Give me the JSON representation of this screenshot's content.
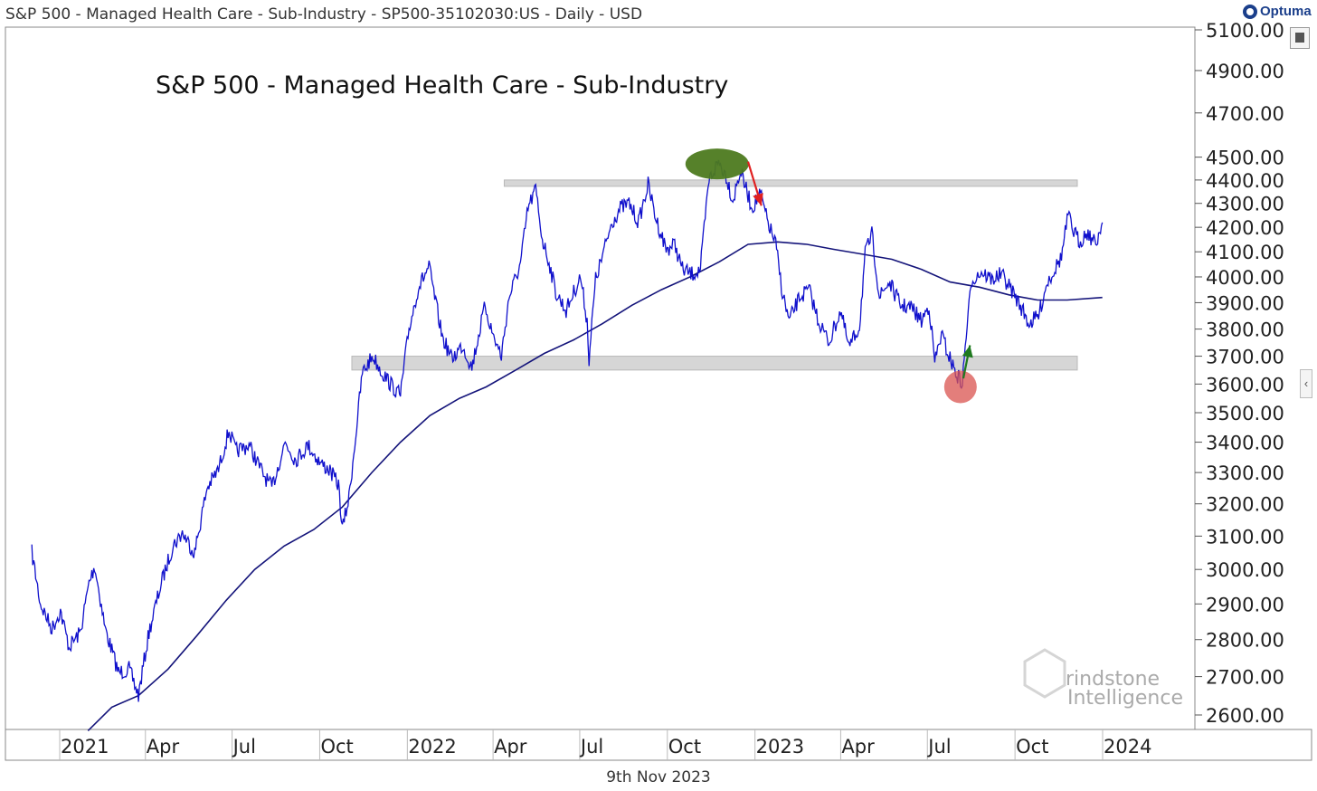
{
  "header": {
    "description": "S&P 500 - Managed Health Care - Sub-Industry - SP500-35102030:US - Daily - USD"
  },
  "brand": {
    "name": "Optuma"
  },
  "footer": {
    "date": "9th Nov 2023"
  },
  "watermark": {
    "line1": "rindstone",
    "line2": "Intelligence"
  },
  "colors": {
    "price": "#1010cc",
    "ma": "#14147a",
    "zone": "#d6d6d6",
    "green": "#4d7a1f",
    "red": "#d9534f",
    "arrow_up": "#1f7a1f",
    "arrow_down": "#e02020"
  },
  "icons": {
    "side": "bar-chart-icon",
    "collapse": "chevron-left-icon"
  },
  "chart_data": {
    "type": "line",
    "title": "S&P 500 - Managed Health Care - Sub-Industry",
    "scale": "log",
    "grid": false,
    "y_tick_labels": [
      "5100.00",
      "4900.00",
      "4700.00",
      "4500.00",
      "4400.00",
      "4300.00",
      "4200.00",
      "4100.00",
      "4000.00",
      "3900.00",
      "3800.00",
      "3700.00",
      "3600.00",
      "3500.00",
      "3400.00",
      "3300.00",
      "3200.00",
      "3100.00",
      "3000.00",
      "2900.00",
      "2800.00",
      "2700.00",
      "2600.00"
    ],
    "y_tick_values": [
      5100,
      4900,
      4700,
      4500,
      4400,
      4300,
      4200,
      4100,
      4000,
      3900,
      3800,
      3700,
      3600,
      3500,
      3400,
      3300,
      3200,
      3100,
      3000,
      2900,
      2800,
      2700,
      2600
    ],
    "x_tick_labels": [
      "2021",
      "Apr",
      "Jul",
      "Oct",
      "2022",
      "Apr",
      "Jul",
      "Oct",
      "2023",
      "Apr",
      "Jul",
      "Oct",
      "2024"
    ],
    "x_tick_dates": [
      "2021-01-01",
      "2021-04-01",
      "2021-07-01",
      "2021-10-01",
      "2022-01-01",
      "2022-04-01",
      "2022-07-01",
      "2022-10-01",
      "2023-01-01",
      "2023-04-01",
      "2023-07-01",
      "2023-10-01",
      "2024-01-01"
    ],
    "series": [
      {
        "key": "price",
        "points": [
          [
            "2020-11-09",
            3050
          ],
          [
            "2020-11-18",
            2900
          ],
          [
            "2020-11-30",
            2830
          ],
          [
            "2020-12-09",
            2880
          ],
          [
            "2020-12-18",
            2780
          ],
          [
            "2020-12-30",
            2820
          ],
          [
            "2021-01-08",
            2960
          ],
          [
            "2021-01-14",
            3010
          ],
          [
            "2021-01-25",
            2830
          ],
          [
            "2021-02-08",
            2710
          ],
          [
            "2021-02-19",
            2720
          ],
          [
            "2021-03-01",
            2650
          ],
          [
            "2021-03-12",
            2820
          ],
          [
            "2021-03-25",
            2960
          ],
          [
            "2021-04-06",
            3070
          ],
          [
            "2021-04-16",
            3110
          ],
          [
            "2021-04-29",
            3050
          ],
          [
            "2021-05-12",
            3250
          ],
          [
            "2021-05-24",
            3310
          ],
          [
            "2021-06-04",
            3440
          ],
          [
            "2021-06-11",
            3370
          ],
          [
            "2021-06-25",
            3390
          ],
          [
            "2021-07-09",
            3300
          ],
          [
            "2021-07-19",
            3250
          ],
          [
            "2021-08-02",
            3400
          ],
          [
            "2021-08-13",
            3340
          ],
          [
            "2021-08-26",
            3390
          ],
          [
            "2021-09-08",
            3330
          ],
          [
            "2021-09-17",
            3310
          ],
          [
            "2021-09-27",
            3260
          ],
          [
            "2021-10-01",
            3120
          ],
          [
            "2021-10-08",
            3220
          ],
          [
            "2021-10-15",
            3420
          ],
          [
            "2021-10-22",
            3640
          ],
          [
            "2021-11-02",
            3700
          ],
          [
            "2021-11-12",
            3640
          ],
          [
            "2021-11-23",
            3590
          ],
          [
            "2021-12-01",
            3560
          ],
          [
            "2021-12-10",
            3800
          ],
          [
            "2021-12-20",
            3960
          ],
          [
            "2021-12-31",
            4040
          ],
          [
            "2022-01-07",
            3900
          ],
          [
            "2022-01-14",
            3770
          ],
          [
            "2022-01-24",
            3690
          ],
          [
            "2022-02-04",
            3740
          ],
          [
            "2022-02-14",
            3660
          ],
          [
            "2022-02-28",
            3890
          ],
          [
            "2022-03-07",
            3790
          ],
          [
            "2022-03-17",
            3700
          ],
          [
            "2022-03-25",
            3920
          ],
          [
            "2022-04-06",
            4050
          ],
          [
            "2022-04-14",
            4280
          ],
          [
            "2022-04-22",
            4360
          ],
          [
            "2022-04-29",
            4150
          ],
          [
            "2022-05-06",
            4060
          ],
          [
            "2022-05-13",
            3940
          ],
          [
            "2022-05-24",
            3870
          ],
          [
            "2022-06-01",
            3940
          ],
          [
            "2022-06-08",
            4000
          ],
          [
            "2022-06-15",
            3830
          ],
          [
            "2022-06-17",
            3690
          ],
          [
            "2022-06-24",
            3990
          ],
          [
            "2022-07-01",
            4080
          ],
          [
            "2022-07-11",
            4220
          ],
          [
            "2022-07-20",
            4280
          ],
          [
            "2022-07-29",
            4300
          ],
          [
            "2022-08-08",
            4220
          ],
          [
            "2022-08-18",
            4380
          ],
          [
            "2022-08-26",
            4240
          ],
          [
            "2022-09-06",
            4110
          ],
          [
            "2022-09-15",
            4130
          ],
          [
            "2022-09-23",
            4030
          ],
          [
            "2022-10-03",
            4010
          ],
          [
            "2022-10-12",
            4030
          ],
          [
            "2022-10-21",
            4400
          ],
          [
            "2022-10-31",
            4480
          ],
          [
            "2022-11-08",
            4420
          ],
          [
            "2022-11-15",
            4310
          ],
          [
            "2022-11-23",
            4440
          ],
          [
            "2022-12-05",
            4280
          ],
          [
            "2022-12-14",
            4340
          ],
          [
            "2022-12-21",
            4230
          ],
          [
            "2022-12-30",
            4130
          ],
          [
            "2023-01-06",
            3940
          ],
          [
            "2023-01-13",
            3830
          ],
          [
            "2023-01-24",
            3920
          ],
          [
            "2023-02-03",
            3950
          ],
          [
            "2023-02-13",
            3830
          ],
          [
            "2023-02-24",
            3750
          ],
          [
            "2023-03-08",
            3870
          ],
          [
            "2023-03-17",
            3730
          ],
          [
            "2023-03-28",
            3810
          ],
          [
            "2023-04-03",
            4090
          ],
          [
            "2023-04-10",
            4170
          ],
          [
            "2023-04-18",
            3920
          ],
          [
            "2023-04-28",
            3980
          ],
          [
            "2023-05-10",
            3890
          ],
          [
            "2023-05-22",
            3880
          ],
          [
            "2023-06-01",
            3830
          ],
          [
            "2023-06-09",
            3890
          ],
          [
            "2023-06-15",
            3680
          ],
          [
            "2023-06-22",
            3780
          ],
          [
            "2023-06-30",
            3700
          ],
          [
            "2023-07-07",
            3640
          ],
          [
            "2023-07-14",
            3600
          ],
          [
            "2023-07-18",
            3780
          ],
          [
            "2023-07-24",
            3990
          ],
          [
            "2023-08-03",
            4020
          ],
          [
            "2023-08-14",
            3990
          ],
          [
            "2023-08-24",
            4010
          ],
          [
            "2023-09-05",
            3940
          ],
          [
            "2023-09-14",
            3880
          ],
          [
            "2023-09-22",
            3820
          ],
          [
            "2023-10-02",
            3850
          ],
          [
            "2023-10-11",
            3980
          ],
          [
            "2023-10-19",
            4030
          ],
          [
            "2023-10-26",
            4080
          ],
          [
            "2023-11-02",
            4250
          ],
          [
            "2023-11-07",
            4190
          ],
          [
            "2023-11-14",
            4140
          ],
          [
            "2023-11-22",
            4180
          ],
          [
            "2023-12-01",
            4130
          ],
          [
            "2023-12-08",
            4220
          ]
        ]
      },
      {
        "key": "moving_average",
        "points": [
          [
            "2021-01-07",
            2560
          ],
          [
            "2021-02-01",
            2620
          ],
          [
            "2021-03-01",
            2650
          ],
          [
            "2021-04-01",
            2720
          ],
          [
            "2021-05-01",
            2810
          ],
          [
            "2021-06-01",
            2910
          ],
          [
            "2021-07-01",
            3000
          ],
          [
            "2021-08-01",
            3070
          ],
          [
            "2021-09-01",
            3120
          ],
          [
            "2021-10-01",
            3190
          ],
          [
            "2021-11-01",
            3300
          ],
          [
            "2021-12-01",
            3400
          ],
          [
            "2022-01-01",
            3490
          ],
          [
            "2022-02-01",
            3550
          ],
          [
            "2022-03-01",
            3590
          ],
          [
            "2022-04-01",
            3650
          ],
          [
            "2022-05-01",
            3710
          ],
          [
            "2022-06-01",
            3760
          ],
          [
            "2022-07-01",
            3820
          ],
          [
            "2022-08-01",
            3890
          ],
          [
            "2022-09-01",
            3950
          ],
          [
            "2022-10-01",
            4000
          ],
          [
            "2022-11-01",
            4060
          ],
          [
            "2022-12-01",
            4130
          ],
          [
            "2023-01-01",
            4140
          ],
          [
            "2023-02-01",
            4130
          ],
          [
            "2023-03-01",
            4110
          ],
          [
            "2023-04-01",
            4090
          ],
          [
            "2023-05-01",
            4070
          ],
          [
            "2023-06-01",
            4030
          ],
          [
            "2023-07-01",
            3980
          ],
          [
            "2023-08-01",
            3960
          ],
          [
            "2023-09-01",
            3930
          ],
          [
            "2023-10-01",
            3910
          ],
          [
            "2023-11-01",
            3910
          ],
          [
            "2023-12-08",
            3920
          ]
        ]
      }
    ],
    "annotations": [
      {
        "type": "zone",
        "from": 4380,
        "to": 4400,
        "x_start": "2022-03-20",
        "x_end": "2024-01-01"
      },
      {
        "type": "zone",
        "from": 3650,
        "to": 3700,
        "x_start": "2021-10-11",
        "x_end": "2024-01-01"
      },
      {
        "type": "ellipse",
        "color": "green",
        "date": "2022-11-08",
        "value": 4470
      },
      {
        "type": "circle",
        "color": "red",
        "date": "2023-07-12",
        "value": 3590
      },
      {
        "type": "arrow",
        "direction": "down",
        "color": "red",
        "from_date": "2022-12-01",
        "from_value": 4480,
        "to_date": "2022-12-15",
        "to_value": 4290
      },
      {
        "type": "arrow",
        "direction": "up",
        "color": "green",
        "from_date": "2023-07-15",
        "from_value": 3620,
        "to_date": "2023-07-22",
        "to_value": 3740
      }
    ]
  }
}
